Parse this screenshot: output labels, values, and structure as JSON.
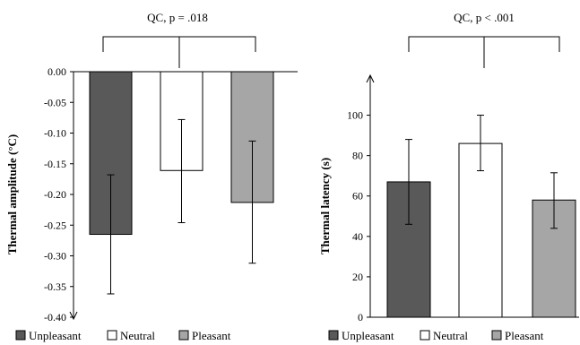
{
  "chart_data": [
    {
      "type": "bar",
      "ylabel": "Thermal  amplitude (°C)",
      "ylim": [
        -0.4,
        0.0
      ],
      "yticks": [
        "0.00",
        "-0.05",
        "-0.10",
        "-0.15",
        "-0.20",
        "-0.25",
        "-0.30",
        "-0.35",
        "-0.40"
      ],
      "categories": [
        "Unpleasant",
        "Neutral",
        "Pleasant"
      ],
      "values": [
        -0.265,
        -0.161,
        -0.213
      ],
      "error_low": [
        -0.362,
        -0.246,
        -0.312
      ],
      "error_high": [
        -0.168,
        -0.078,
        -0.113
      ],
      "annotation": "QC, p = .018",
      "colors": [
        "#595959",
        "#ffffff",
        "#a6a6a6"
      ]
    },
    {
      "type": "bar",
      "ylabel": "Thermal latency (s)",
      "ylim": [
        0,
        110
      ],
      "yticks": [
        "0",
        "20",
        "40",
        "60",
        "80",
        "100"
      ],
      "categories": [
        "Unpleasant",
        "Neutral",
        "Pleasant"
      ],
      "values": [
        67,
        86,
        58
      ],
      "error_low": [
        46,
        72.5,
        44
      ],
      "error_high": [
        88,
        100,
        71.5
      ],
      "annotation": "QC, p < .001",
      "colors": [
        "#595959",
        "#ffffff",
        "#a6a6a6"
      ]
    }
  ],
  "legend": [
    {
      "label": "Unpleasant",
      "color": "#595959"
    },
    {
      "label": "Neutral",
      "color": "#ffffff"
    },
    {
      "label": "Pleasant",
      "color": "#a6a6a6"
    }
  ]
}
